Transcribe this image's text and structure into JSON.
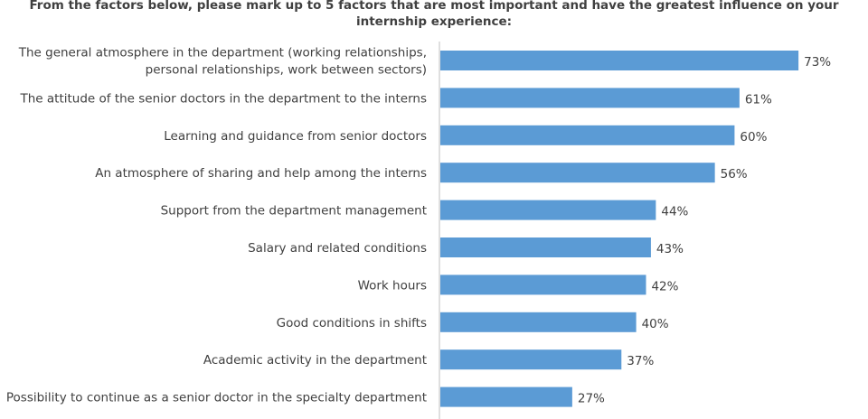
{
  "chart_data": {
    "type": "bar",
    "orientation": "horizontal",
    "title_lines": [
      "From the factors below, please mark up to 5 factors that are most important and have the greatest influence on your",
      "internship experience:"
    ],
    "categories": [
      [
        "The general atmosphere in the department (working relationships,",
        "personal relationships, work between sectors)"
      ],
      [
        "The attitude of the senior doctors in the department to the interns"
      ],
      [
        "Learning and guidance from senior doctors"
      ],
      [
        "An atmosphere of sharing and help among the interns"
      ],
      [
        "Support from the department management"
      ],
      [
        "Salary and related conditions"
      ],
      [
        "Work hours"
      ],
      [
        "Good conditions in shifts"
      ],
      [
        "Academic activity in the department"
      ],
      [
        "Possibility to continue as a senior doctor in the specialty department"
      ]
    ],
    "values": [
      73,
      61,
      60,
      56,
      44,
      43,
      42,
      40,
      37,
      27
    ],
    "value_labels": [
      "73%",
      "61%",
      "60%",
      "56%",
      "44%",
      "43%",
      "42%",
      "40%",
      "37%",
      "27%"
    ],
    "value_unit": "%",
    "xlim": [
      0,
      100
    ],
    "bar_color": "#5b9bd5",
    "axis_color": "#bfbfbf"
  }
}
